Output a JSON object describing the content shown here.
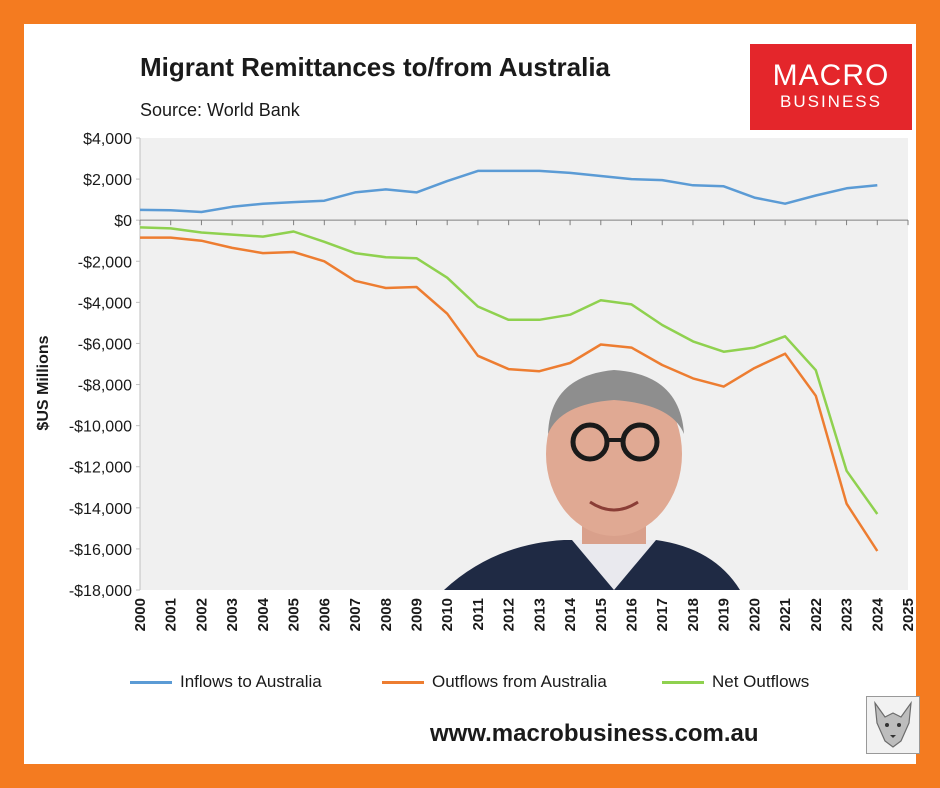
{
  "header": {
    "title": "Migrant Remittances to/from Australia",
    "subtitle": "Source: World Bank"
  },
  "logo": {
    "line1": "MACRO",
    "line2": "BUSINESS"
  },
  "footer": {
    "website": "www.macrobusiness.com.au"
  },
  "colors": {
    "inflows": "#5b9bd5",
    "outflows": "#ed7d31",
    "net": "#8fd14f",
    "frame": "#f47b20",
    "logo_bg": "#e4262b",
    "plot_bg": "#f0f0f0"
  },
  "overlay": {
    "description_icon": "person-photo"
  },
  "chart_data": {
    "type": "line",
    "title": "Migrant Remittances to/from Australia",
    "subtitle": "Source: World Bank",
    "xlabel": "",
    "ylabel": "$US Millions",
    "ylim": [
      -18000,
      4000
    ],
    "xlim": [
      2000,
      2025
    ],
    "x": [
      2000,
      2001,
      2002,
      2003,
      2004,
      2005,
      2006,
      2007,
      2008,
      2009,
      2010,
      2011,
      2012,
      2013,
      2014,
      2015,
      2016,
      2017,
      2018,
      2019,
      2020,
      2021,
      2022,
      2023,
      2024
    ],
    "x_ticks": [
      "2000",
      "2001",
      "2002",
      "2003",
      "2004",
      "2005",
      "2006",
      "2007",
      "2008",
      "2009",
      "2010",
      "2011",
      "2012",
      "2013",
      "2014",
      "2015",
      "2016",
      "2017",
      "2018",
      "2019",
      "2020",
      "2021",
      "2022",
      "2023",
      "2024",
      "2025"
    ],
    "y_ticks": [
      {
        "value": 4000,
        "label": "$4,000"
      },
      {
        "value": 2000,
        "label": "$2,000"
      },
      {
        "value": 0,
        "label": "$0"
      },
      {
        "value": -2000,
        "label": "-$2,000"
      },
      {
        "value": -4000,
        "label": "-$4,000"
      },
      {
        "value": -6000,
        "label": "-$6,000"
      },
      {
        "value": -8000,
        "label": "-$8,000"
      },
      {
        "value": -10000,
        "label": "-$10,000"
      },
      {
        "value": -12000,
        "label": "-$12,000"
      },
      {
        "value": -14000,
        "label": "-$14,000"
      },
      {
        "value": -16000,
        "label": "-$16,000"
      },
      {
        "value": -18000,
        "label": "-$18,000"
      }
    ],
    "series": [
      {
        "name": "Inflows to Australia",
        "color": "#5b9bd5",
        "values": [
          500,
          480,
          400,
          650,
          800,
          880,
          950,
          1350,
          1500,
          1350,
          1900,
          2400,
          2400,
          2400,
          2300,
          2150,
          2000,
          1950,
          1700,
          1650,
          1100,
          800,
          1200,
          1550,
          1700
        ]
      },
      {
        "name": "Outflows from Australia",
        "color": "#ed7d31",
        "values": [
          -850,
          -850,
          -1000,
          -1350,
          -1600,
          -1550,
          -2000,
          -2950,
          -3300,
          -3250,
          -4550,
          -6600,
          -7250,
          -7350,
          -6950,
          -6050,
          -6200,
          -7050,
          -7700,
          -8100,
          -7200,
          -6500,
          -8550,
          -13800,
          -16100
        ]
      },
      {
        "name": "Net Outflows",
        "color": "#8fd14f",
        "values": [
          -350,
          -400,
          -600,
          -700,
          -800,
          -550,
          -1050,
          -1600,
          -1800,
          -1850,
          -2800,
          -4200,
          -4850,
          -4850,
          -4600,
          -3900,
          -4100,
          -5100,
          -5900,
          -6400,
          -6200,
          -5650,
          -7300,
          -12200,
          -14300
        ]
      }
    ],
    "legend_position": "bottom",
    "grid": false
  }
}
